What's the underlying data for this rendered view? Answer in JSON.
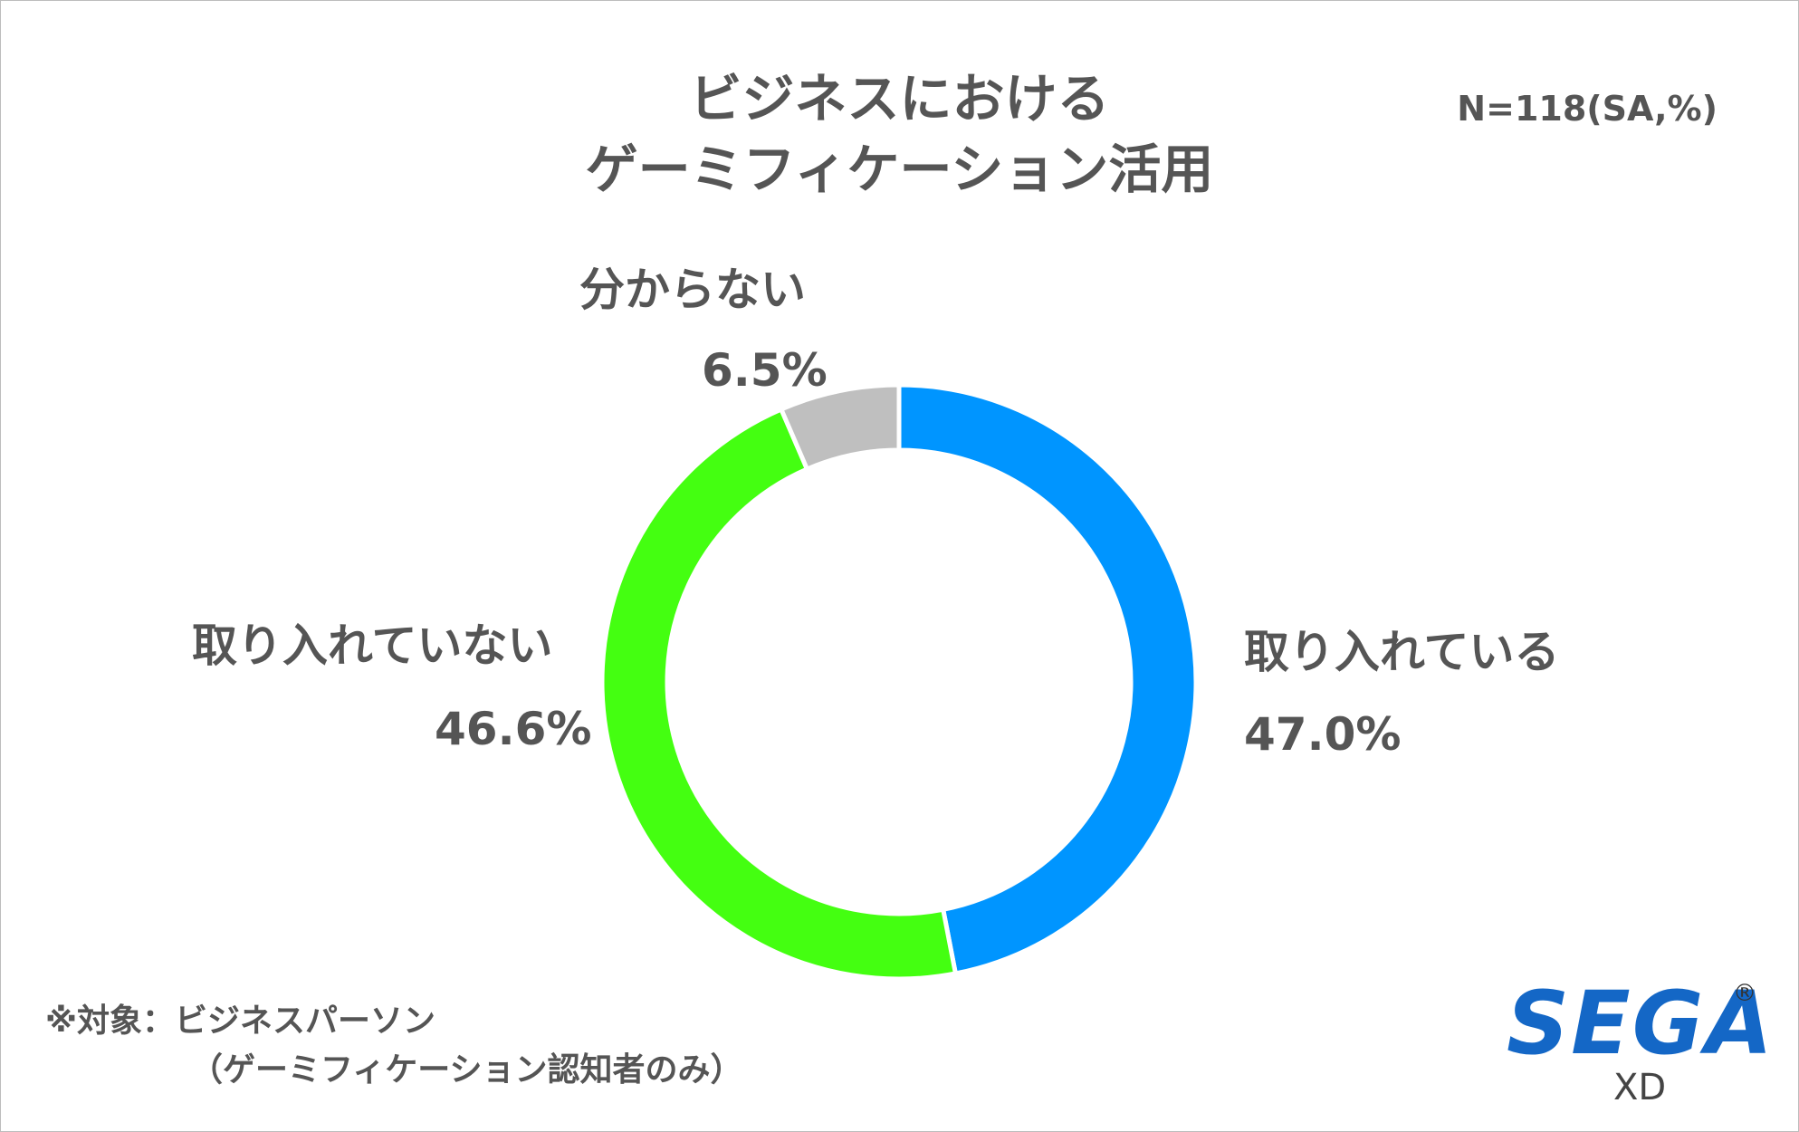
{
  "chart_data": {
    "type": "pie",
    "variant": "donut",
    "title_line1": "ビジネスにおける",
    "title_line2": "ゲーミフィケーション活用",
    "sample_note": "N=118(SA,%)",
    "slices": [
      {
        "label": "取り入れている",
        "value": 47.0,
        "value_label": "47.0%",
        "color": "#0095ff"
      },
      {
        "label": "取り入れていない",
        "value": 46.6,
        "value_label": "46.6%",
        "color": "#44ff11"
      },
      {
        "label": "分からない",
        "value": 6.5,
        "value_label": "6.5%",
        "color": "#bfbfbf"
      }
    ],
    "start": "12 o'clock",
    "direction": "clockwise",
    "separator_color": "#ffffff"
  },
  "footnote": {
    "line1": "※対象：ビジネスパーソン",
    "line2": "（ゲーミフィケーション認知者のみ）"
  },
  "logo": {
    "brand": "SEGA",
    "registered": "®",
    "sub": "XD",
    "brand_color": "#1467c6"
  }
}
